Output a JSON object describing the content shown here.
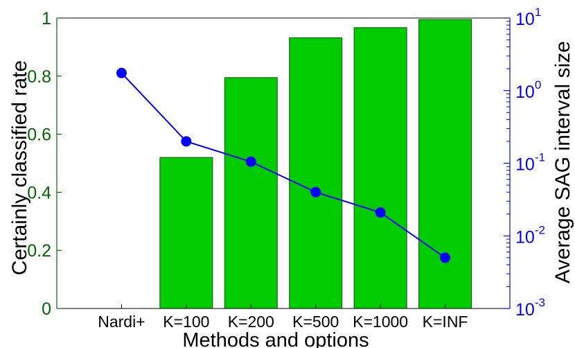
{
  "chart_data": {
    "type": "bar",
    "categories": [
      "Nardi+",
      "K=100",
      "K=200",
      "K=500",
      "K=1000",
      "K=INF"
    ],
    "xlabel": "Methods and options",
    "ylabel": "Certainly classified rate",
    "y2label": "Average SAG interval size",
    "ylim": [
      0,
      1
    ],
    "y2lim": [
      0.001,
      10
    ],
    "y2_scale": "log",
    "yticks": [
      "0",
      "0.2",
      "0.4",
      "0.6",
      "0.8",
      "1"
    ],
    "y2ticks": [
      {
        "base": "10",
        "exp": "-3"
      },
      {
        "base": "10",
        "exp": "-2"
      },
      {
        "base": "10",
        "exp": "-1"
      },
      {
        "base": "10",
        "exp": "0"
      },
      {
        "base": "10",
        "exp": "1"
      }
    ],
    "series": [
      {
        "type": "bar",
        "axis": "left",
        "values": [
          0,
          0.52,
          0.795,
          0.932,
          0.967,
          0.995
        ]
      },
      {
        "type": "line",
        "axis": "right",
        "values": [
          1.75,
          0.2,
          0.105,
          0.04,
          0.021,
          0.005
        ]
      }
    ],
    "colors": {
      "bar_fill": "#00cc00",
      "bar_stroke": "#1a4d1a",
      "left_axis": "#006600",
      "right_axis": "#0000ff",
      "line": "#0000ff",
      "marker": "#0000ff"
    },
    "grid": false,
    "legend": "none"
  }
}
